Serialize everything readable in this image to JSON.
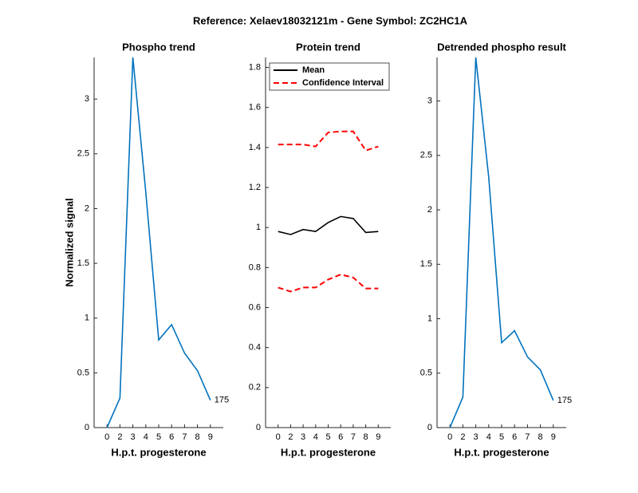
{
  "title": "Reference:  Xelaev18032121m - Gene Symbol:  ZC2HC1A",
  "chart_data": [
    {
      "type": "line",
      "title": "Phospho trend",
      "xlabel": "H.p.t. progesterone",
      "ylabel": "Normalized signal",
      "categories": [
        "0",
        "2",
        "3",
        "4",
        "5",
        "6",
        "7",
        "8",
        "9"
      ],
      "series": [
        {
          "color": "#0072bd",
          "values": [
            0,
            0.27,
            3.38,
            2.15,
            0.8,
            0.94,
            0.68,
            0.52,
            0.25
          ]
        }
      ],
      "annotation": "175",
      "ylim": [
        0,
        3.38
      ],
      "yticks": [
        0,
        0.5,
        1,
        1.5,
        2,
        2.5,
        3
      ]
    },
    {
      "type": "line",
      "title": "Protein trend",
      "xlabel": "H.p.t. progesterone",
      "categories": [
        "0",
        "2",
        "3",
        "4",
        "5",
        "6",
        "7",
        "8",
        "9"
      ],
      "series": [
        {
          "name": "Mean",
          "color": "#000000",
          "values": [
            0.98,
            0.965,
            0.99,
            0.98,
            1.025,
            1.055,
            1.045,
            0.975,
            0.98
          ]
        },
        {
          "name": "Confidence Interval",
          "color": "#ff0000",
          "dashed": true,
          "values": [
            1.415,
            1.415,
            1.415,
            1.405,
            1.475,
            1.48,
            1.48,
            1.385,
            1.405
          ],
          "lower_values": [
            0.7,
            0.68,
            0.7,
            0.7,
            0.74,
            0.765,
            0.75,
            0.695,
            0.695
          ]
        }
      ],
      "legend": "upper left",
      "ylim": [
        0,
        1.85
      ],
      "yticks": [
        0,
        0.2,
        0.4,
        0.6,
        0.8,
        1,
        1.2,
        1.4,
        1.6,
        1.8
      ]
    },
    {
      "type": "line",
      "title": "Detrended phospho result",
      "xlabel": "H.p.t. progesterone",
      "categories": [
        "0",
        "2",
        "3",
        "4",
        "5",
        "6",
        "7",
        "8",
        "9"
      ],
      "series": [
        {
          "color": "#0072bd",
          "values": [
            0,
            0.28,
            3.4,
            2.3,
            0.78,
            0.89,
            0.65,
            0.53,
            0.25
          ]
        }
      ],
      "annotation": "175",
      "ylim": [
        0,
        3.4
      ],
      "yticks": [
        0,
        0.5,
        1,
        1.5,
        2,
        2.5,
        3
      ]
    }
  ]
}
